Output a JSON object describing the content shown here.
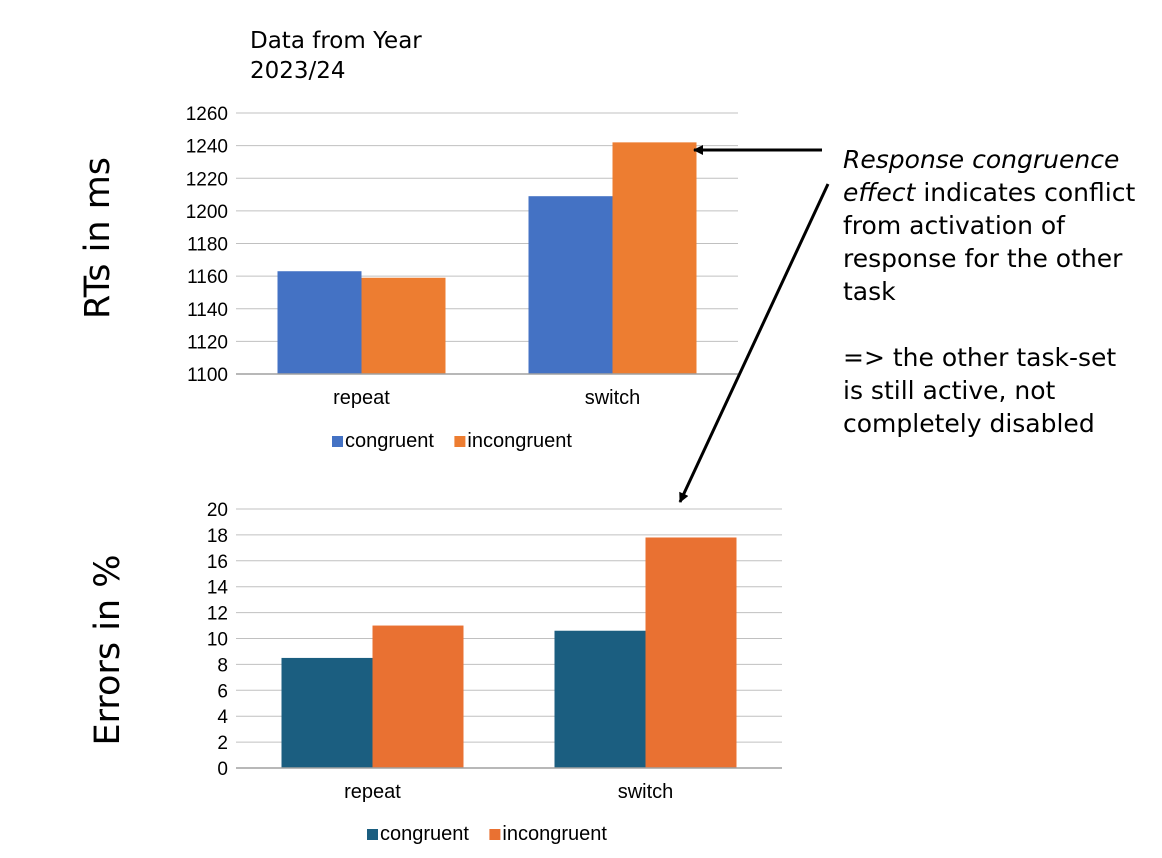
{
  "note": {
    "line1": "Data from Year",
    "line2": "2023/24"
  },
  "annotation": {
    "italic_part": "Response congruence effect",
    "rest_line1": "indicates conflict",
    "line2": "from activation of",
    "line3": "response for the other",
    "line4": "task",
    "conclusion_line1": "=> the other task-set",
    "conclusion_line2": "is still active, not",
    "conclusion_line3": "completely disabled"
  },
  "colors": {
    "congruent_top": "#4472c4",
    "incongruent_top": "#ed7d31",
    "congruent_bottom": "#1b5e80",
    "incongruent_bottom": "#e97132",
    "grid": "#c0c0c0"
  },
  "chart_data": [
    {
      "type": "bar",
      "title": "",
      "ylabel": "RTs in ms",
      "xlabel": "",
      "categories": [
        "repeat",
        "switch"
      ],
      "ylim": [
        1100,
        1260
      ],
      "yticks": [
        1100,
        1120,
        1140,
        1160,
        1180,
        1200,
        1220,
        1240,
        1260
      ],
      "legend": "bottom",
      "grid": true,
      "series": [
        {
          "name": "congruent",
          "values": [
            1163,
            1209
          ]
        },
        {
          "name": "incongruent",
          "values": [
            1159,
            1242
          ]
        }
      ]
    },
    {
      "type": "bar",
      "title": "",
      "ylabel": "Errors in %",
      "xlabel": "",
      "categories": [
        "repeat",
        "switch"
      ],
      "ylim": [
        0,
        20
      ],
      "yticks": [
        0,
        2,
        4,
        6,
        8,
        10,
        12,
        14,
        16,
        18,
        20
      ],
      "legend": "bottom",
      "grid": true,
      "series": [
        {
          "name": "congruent",
          "values": [
            8.5,
            10.6
          ]
        },
        {
          "name": "incongruent",
          "values": [
            11.0,
            17.8
          ]
        }
      ]
    }
  ]
}
